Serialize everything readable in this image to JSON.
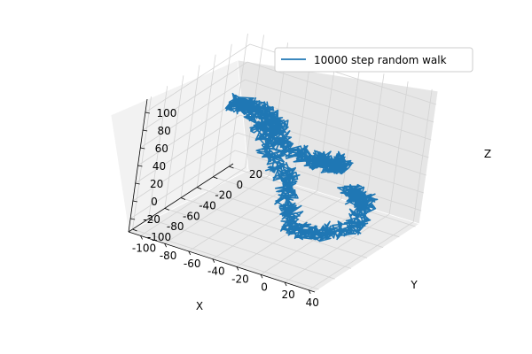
{
  "chart_data": {
    "type": "line",
    "title": "",
    "xlabel": "X",
    "ylabel": "Y",
    "zlabel": "Z",
    "xlim": [
      -110,
      45
    ],
    "ylim": [
      -105,
      25
    ],
    "zlim": [
      -35,
      115
    ],
    "xticks": [
      -100,
      -80,
      -60,
      -40,
      -20,
      0,
      20,
      40
    ],
    "yticks": [
      -100,
      -80,
      -60,
      -40,
      -20,
      0,
      20
    ],
    "zticks": [
      -20,
      0,
      20,
      40,
      60,
      80,
      100
    ],
    "grid": true,
    "legend_position": "top-right",
    "series": [
      {
        "name": "10000 step random walk",
        "color": "#1f77b4",
        "steps": 10000,
        "x": [
          0,
          10,
          22,
          32,
          38,
          40,
          30,
          15,
          0,
          -15,
          -25,
          -35,
          -40,
          -50,
          -65,
          -75,
          -82,
          -90,
          -98,
          -95,
          -85,
          -70,
          -55,
          -40,
          -30,
          -22,
          -15,
          -8,
          5,
          15,
          22,
          18,
          5,
          -10,
          -20,
          -30
        ],
        "y": [
          0,
          -10,
          -20,
          -30,
          -45,
          -55,
          -60,
          -58,
          -50,
          -45,
          -35,
          -25,
          -15,
          -5,
          0,
          10,
          15,
          12,
          5,
          -10,
          -20,
          -30,
          -40,
          -55,
          -65,
          -75,
          -80,
          -82,
          -78,
          -72,
          -60,
          -45,
          -30,
          -20,
          -10,
          -5
        ],
        "z": [
          0,
          5,
          10,
          15,
          12,
          5,
          0,
          -10,
          -20,
          -25,
          -22,
          -15,
          -5,
          0,
          5,
          10,
          20,
          35,
          50,
          60,
          70,
          80,
          90,
          95,
          100,
          105,
          100,
          92,
          85,
          80,
          70,
          60,
          50,
          40,
          30,
          20
        ]
      }
    ]
  }
}
